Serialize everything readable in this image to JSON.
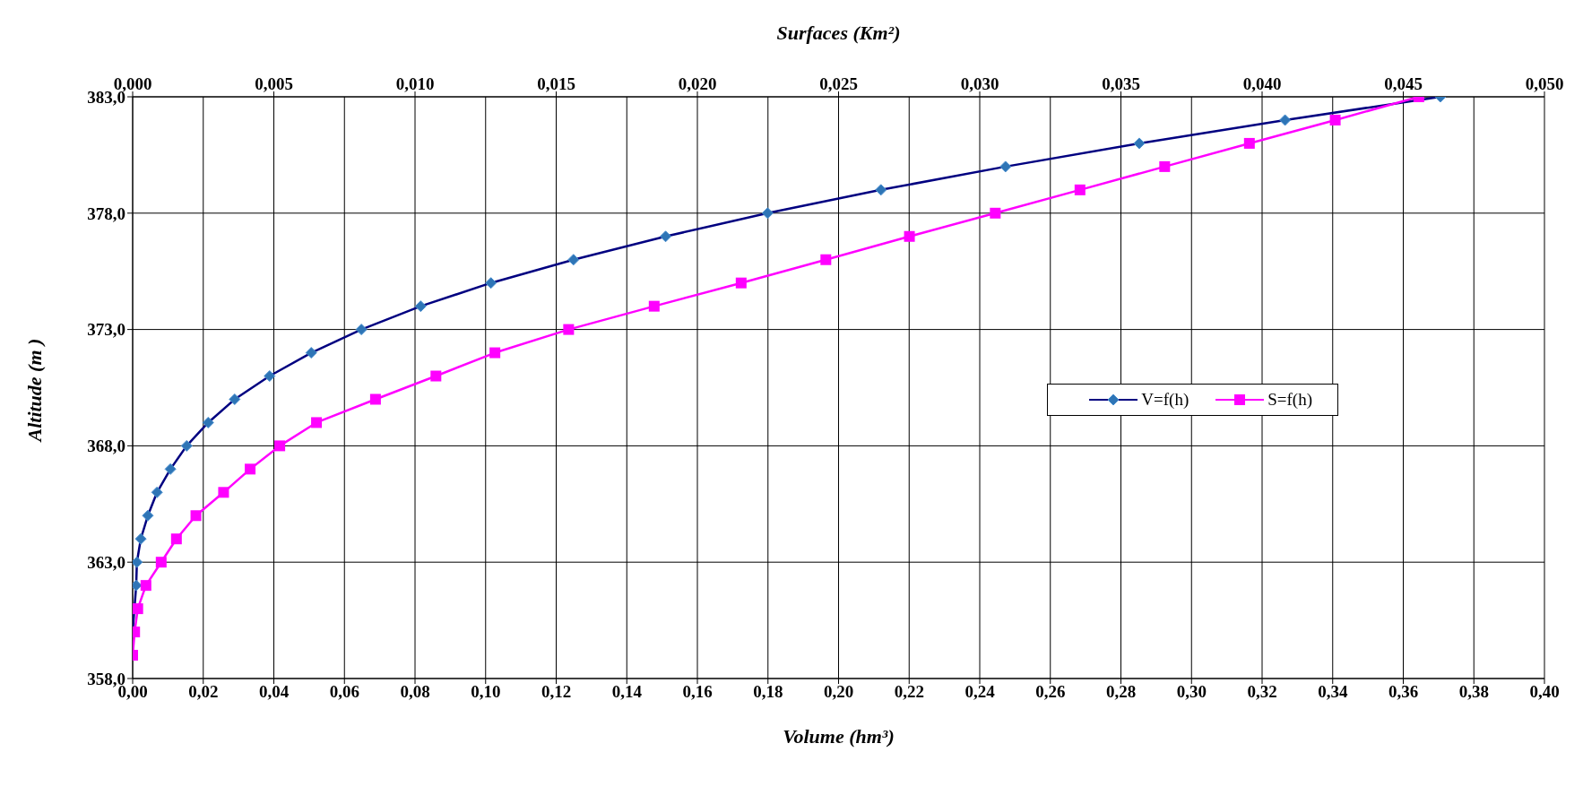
{
  "chart_data": {
    "type": "line",
    "xlabel": "Volume (hm³)",
    "x2label": "Surfaces (Km²)",
    "ylabel": "Altitude (m )",
    "xlim": [
      0,
      0.4
    ],
    "xticks": [
      {
        "value": 0,
        "label": "0,00"
      },
      {
        "value": 0.02,
        "label": "0,02"
      },
      {
        "value": 0.04,
        "label": "0,04"
      },
      {
        "value": 0.06,
        "label": "0,06"
      },
      {
        "value": 0.08,
        "label": "0,08"
      },
      {
        "value": 0.1,
        "label": "0,10"
      },
      {
        "value": 0.12,
        "label": "0,12"
      },
      {
        "value": 0.14,
        "label": "0,14"
      },
      {
        "value": 0.16,
        "label": "0,16"
      },
      {
        "value": 0.18,
        "label": "0,18"
      },
      {
        "value": 0.2,
        "label": "0,20"
      },
      {
        "value": 0.22,
        "label": "0,22"
      },
      {
        "value": 0.24,
        "label": "0,24"
      },
      {
        "value": 0.26,
        "label": "0,26"
      },
      {
        "value": 0.28,
        "label": "0,28"
      },
      {
        "value": 0.3,
        "label": "0,30"
      },
      {
        "value": 0.32,
        "label": "0,32"
      },
      {
        "value": 0.34,
        "label": "0,34"
      },
      {
        "value": 0.36,
        "label": "0,36"
      },
      {
        "value": 0.38,
        "label": "0,38"
      },
      {
        "value": 0.4,
        "label": "0,40"
      }
    ],
    "x2lim": [
      0,
      0.05
    ],
    "x2ticks": [
      {
        "value": 0,
        "label": "0,000"
      },
      {
        "value": 0.005,
        "label": "0,005"
      },
      {
        "value": 0.01,
        "label": "0,010"
      },
      {
        "value": 0.015,
        "label": "0,015"
      },
      {
        "value": 0.02,
        "label": "0,020"
      },
      {
        "value": 0.025,
        "label": "0,025"
      },
      {
        "value": 0.03,
        "label": "0,030"
      },
      {
        "value": 0.035,
        "label": "0,035"
      },
      {
        "value": 0.04,
        "label": "0,040"
      },
      {
        "value": 0.045,
        "label": "0,045"
      },
      {
        "value": 0.05,
        "label": "0,050"
      }
    ],
    "ylim": [
      358,
      383
    ],
    "yticks": [
      {
        "value": 358,
        "label": "358,0"
      },
      {
        "value": 363,
        "label": "363,0"
      },
      {
        "value": 368,
        "label": "368,0"
      },
      {
        "value": 373,
        "label": "373,0"
      },
      {
        "value": 378,
        "label": "378,0"
      },
      {
        "value": 383,
        "label": "383,0"
      }
    ],
    "grid": true,
    "legend": "right",
    "series": [
      {
        "name": "V=f(h)",
        "color": "#000080",
        "marker": "diamond",
        "colors": [
          "#2e75b6",
          "#2e75b6",
          "#2e75b6",
          "#2e75b6",
          "#2e75b6",
          "#2e75b6",
          "#2e75b6",
          "#2e75b6",
          "#2e75b6",
          "#2e75b6",
          "#2e75b6",
          "#2e75b6",
          "#2e75b6",
          "#2e75b6",
          "#2e75b6",
          "#2e75b6",
          "#2e75b6",
          "#2e75b6",
          "#2e75b6",
          "#2e75b6",
          "#2e75b6",
          "#2e75b6",
          "#2e75b6",
          "#2e75b6"
        ],
        "x": [
          0,
          0.0005,
          0.001,
          0.0012,
          0.0023,
          0.0043,
          0.0069,
          0.0107,
          0.0153,
          0.0214,
          0.0289,
          0.0388,
          0.0506,
          0.0648,
          0.0816,
          0.1015,
          0.1249,
          0.151,
          0.1799,
          0.212,
          0.2473,
          0.2852,
          0.3265,
          0.3705
        ],
        "values": [
          360,
          361,
          362,
          363,
          364,
          365,
          366,
          367,
          368,
          369,
          370,
          371,
          372,
          373,
          374,
          375,
          376,
          377,
          378,
          379,
          380,
          381,
          382,
          383
        ]
      },
      {
        "name": "S=f(h)",
        "color": "#ff00ff",
        "marker": "square",
        "axis": "x2",
        "x": [
          0,
          7e-05,
          0.00018,
          0.00047,
          0.00101,
          0.00155,
          0.00224,
          0.00322,
          0.00416,
          0.00521,
          0.00651,
          0.0086,
          0.01074,
          0.01283,
          0.01544,
          0.01847,
          0.02155,
          0.02455,
          0.02751,
          0.03055,
          0.03355,
          0.03655,
          0.03955,
          0.04259,
          0.04555
        ],
        "values": [
          359,
          360,
          361,
          362,
          363,
          364,
          365,
          366,
          367,
          368,
          369,
          370,
          371,
          372,
          373,
          374,
          375,
          376,
          377,
          378,
          379,
          380,
          381,
          382,
          383
        ]
      }
    ]
  }
}
